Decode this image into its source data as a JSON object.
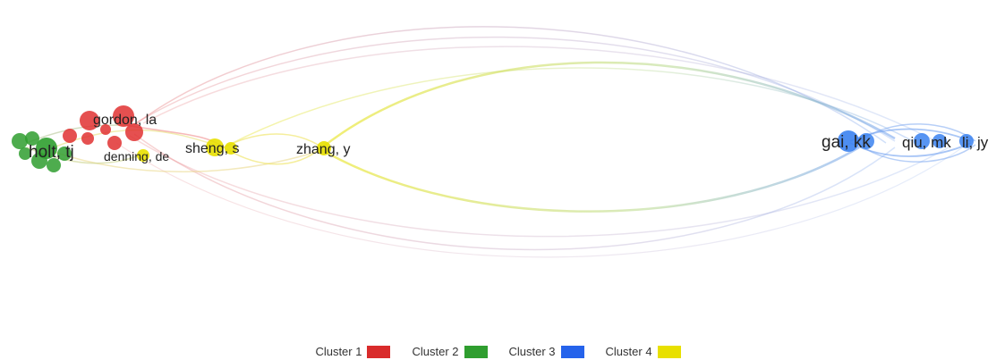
{
  "network": {
    "labels": {
      "gordon": "gordon, la",
      "holt": "holt, tj",
      "denning": "denning, de",
      "sheng": "sheng, s",
      "zhang": "zhang, y",
      "gai": "gai, kk",
      "qiu": "qiu, mk",
      "li": "li, jy"
    },
    "colors": {
      "cluster1": "#e03131",
      "cluster2": "#2f9e2f",
      "cluster3": "#3b82f0",
      "cluster4": "#e8e000"
    }
  },
  "legend": {
    "items": [
      {
        "label": "Cluster  1",
        "color": "#d92b2b"
      },
      {
        "label": "Cluster  2",
        "color": "#2f9e2f"
      },
      {
        "label": "Cluster  3",
        "color": "#2563eb"
      },
      {
        "label": "Cluster  4",
        "color": "#e8e000"
      }
    ]
  }
}
